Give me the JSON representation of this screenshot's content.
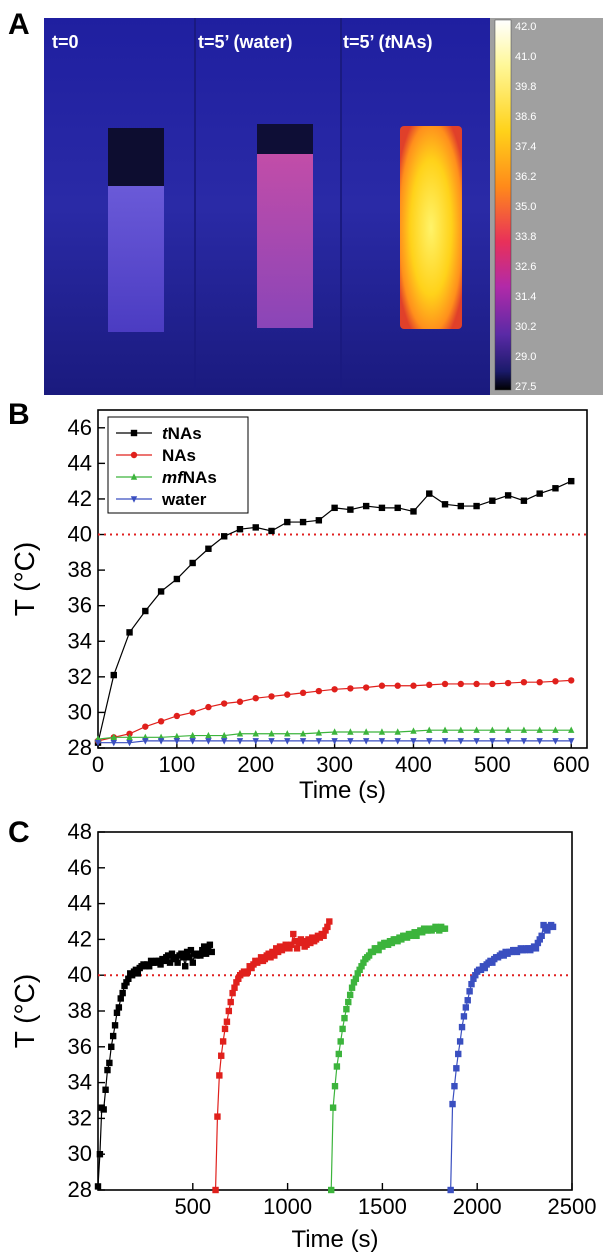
{
  "panels": {
    "a": {
      "letter": "A",
      "labels": [
        "t=0",
        "t=5’ (water)",
        "t=5’ (",
        "t",
        "NAs)"
      ],
      "colorbar_ticks": [
        "42.0",
        "41.0",
        "39.8",
        "38.6",
        "37.4",
        "36.2",
        "35.0",
        "33.8",
        "32.6",
        "31.4",
        "30.2",
        "29.0",
        "27.5"
      ]
    },
    "b": {
      "letter": "B"
    },
    "c": {
      "letter": "C"
    }
  },
  "chart_data": [
    {
      "type": "line",
      "panel": "B",
      "xlabel": "Time (s)",
      "ylabel": "T (°C)",
      "xlim": [
        0,
        620
      ],
      "ylim": [
        28,
        47
      ],
      "xticks": [
        0,
        100,
        200,
        300,
        400,
        500,
        600
      ],
      "yticks": [
        28,
        30,
        32,
        34,
        36,
        38,
        40,
        42,
        44,
        46
      ],
      "reference_line": {
        "y": 40,
        "style": "dotted",
        "color": "#e02020"
      },
      "legend": {
        "placement": "top-left"
      },
      "series": [
        {
          "name_italic": "t",
          "name_rest": "NAs",
          "marker": "square",
          "color": "#000000",
          "x": [
            0,
            20,
            40,
            60,
            80,
            100,
            120,
            140,
            160,
            180,
            200,
            220,
            240,
            260,
            280,
            300,
            320,
            340,
            360,
            380,
            400,
            420,
            440,
            460,
            480,
            500,
            520,
            540,
            560,
            580,
            600
          ],
          "y": [
            28.3,
            32.1,
            34.5,
            35.7,
            36.8,
            37.5,
            38.4,
            39.2,
            39.9,
            40.3,
            40.4,
            40.2,
            40.7,
            40.7,
            40.8,
            41.5,
            41.4,
            41.6,
            41.5,
            41.5,
            41.3,
            42.3,
            41.7,
            41.6,
            41.6,
            41.9,
            42.2,
            41.9,
            42.3,
            42.6,
            43.0
          ]
        },
        {
          "name_italic": "",
          "name_rest": "NAs",
          "marker": "circle",
          "color": "#e0201c",
          "x": [
            0,
            20,
            40,
            60,
            80,
            100,
            120,
            140,
            160,
            180,
            200,
            220,
            240,
            260,
            280,
            300,
            320,
            340,
            360,
            380,
            400,
            420,
            440,
            460,
            480,
            500,
            520,
            540,
            560,
            580,
            600
          ],
          "y": [
            28.4,
            28.6,
            28.8,
            29.2,
            29.5,
            29.8,
            30.0,
            30.3,
            30.5,
            30.6,
            30.8,
            30.9,
            31.0,
            31.1,
            31.2,
            31.3,
            31.35,
            31.4,
            31.5,
            31.5,
            31.5,
            31.55,
            31.6,
            31.6,
            31.6,
            31.6,
            31.65,
            31.7,
            31.7,
            31.75,
            31.8
          ]
        },
        {
          "name_italic": "mf",
          "name_rest": "NAs",
          "marker": "triangle-up",
          "color": "#3cb43c",
          "x": [
            0,
            20,
            40,
            60,
            80,
            100,
            120,
            140,
            160,
            180,
            200,
            220,
            240,
            260,
            280,
            300,
            320,
            340,
            360,
            380,
            400,
            420,
            440,
            460,
            480,
            500,
            520,
            540,
            560,
            580,
            600
          ],
          "y": [
            28.5,
            28.6,
            28.6,
            28.6,
            28.6,
            28.65,
            28.7,
            28.7,
            28.7,
            28.8,
            28.8,
            28.8,
            28.8,
            28.8,
            28.85,
            28.9,
            28.9,
            28.9,
            28.9,
            28.9,
            28.95,
            29.0,
            29.0,
            29.0,
            29.0,
            29.0,
            29.0,
            29.0,
            29.0,
            29.0,
            29.0
          ]
        },
        {
          "name_italic": "",
          "name_rest": "water",
          "marker": "triangle-down",
          "color": "#3a4fc0",
          "x": [
            0,
            20,
            40,
            60,
            80,
            100,
            120,
            140,
            160,
            180,
            200,
            220,
            240,
            260,
            280,
            300,
            320,
            340,
            360,
            380,
            400,
            420,
            440,
            460,
            480,
            500,
            520,
            540,
            560,
            580,
            600
          ],
          "y": [
            28.3,
            28.3,
            28.3,
            28.4,
            28.4,
            28.4,
            28.4,
            28.4,
            28.4,
            28.4,
            28.4,
            28.4,
            28.4,
            28.4,
            28.4,
            28.4,
            28.4,
            28.4,
            28.4,
            28.4,
            28.4,
            28.4,
            28.4,
            28.4,
            28.4,
            28.4,
            28.4,
            28.4,
            28.4,
            28.4,
            28.4
          ]
        }
      ]
    },
    {
      "type": "line",
      "panel": "C",
      "xlabel": "Time (s)",
      "ylabel": "T (°C)",
      "xlim": [
        0,
        2500
      ],
      "ylim": [
        28,
        48
      ],
      "xticks": [
        500,
        1000,
        1500,
        2000,
        2500
      ],
      "yticks": [
        28,
        30,
        32,
        34,
        36,
        38,
        40,
        42,
        44,
        46,
        48
      ],
      "reference_line": {
        "y": 40,
        "style": "dotted",
        "color": "#e02020"
      },
      "series": [
        {
          "color": "#000000",
          "x": [
            0,
            10,
            20,
            30,
            40,
            50,
            60,
            70,
            80,
            90,
            100,
            110,
            120,
            130,
            140,
            150,
            160,
            170,
            180,
            190,
            200,
            210,
            220,
            230,
            240,
            250,
            260,
            270,
            280,
            290,
            300,
            310,
            320,
            330,
            340,
            350,
            360,
            370,
            380,
            390,
            400,
            410,
            420,
            430,
            440,
            450,
            460,
            470,
            480,
            490,
            500,
            510,
            520,
            530,
            540,
            550,
            560,
            570,
            580,
            590,
            600
          ],
          "y": [
            28.2,
            30.0,
            32.6,
            32.5,
            33.6,
            34.7,
            35.1,
            36.0,
            36.6,
            37.2,
            37.9,
            38.2,
            38.7,
            39.0,
            39.4,
            39.6,
            39.8,
            40.1,
            40.0,
            40.2,
            40.3,
            40.1,
            40.4,
            40.5,
            40.6,
            40.5,
            40.6,
            40.5,
            40.8,
            40.7,
            40.7,
            40.8,
            40.8,
            40.6,
            40.9,
            40.8,
            41.0,
            41.1,
            40.7,
            41.2,
            41.0,
            40.9,
            40.7,
            41.1,
            41.2,
            41.0,
            40.5,
            41.3,
            41.0,
            41.4,
            40.7,
            41.2,
            41.1,
            41.2,
            41.1,
            41.4,
            41.6,
            41.2,
            41.5,
            41.7,
            41.3
          ]
        },
        {
          "color": "#e0201c",
          "x": [
            620,
            630,
            640,
            650,
            660,
            670,
            680,
            690,
            700,
            710,
            720,
            730,
            740,
            750,
            760,
            770,
            780,
            790,
            800,
            810,
            820,
            830,
            840,
            850,
            860,
            870,
            880,
            890,
            900,
            910,
            920,
            930,
            940,
            950,
            960,
            970,
            980,
            990,
            1000,
            1010,
            1020,
            1030,
            1040,
            1050,
            1060,
            1070,
            1080,
            1090,
            1100,
            1110,
            1120,
            1130,
            1140,
            1150,
            1160,
            1170,
            1180,
            1190,
            1200,
            1210,
            1220
          ],
          "y": [
            28.0,
            32.1,
            34.4,
            35.5,
            36.3,
            37.0,
            37.4,
            38.0,
            38.5,
            39.0,
            39.3,
            39.6,
            39.8,
            40.0,
            40.1,
            40.2,
            40.1,
            40.2,
            40.5,
            40.4,
            40.6,
            40.8,
            40.7,
            40.8,
            41.0,
            40.8,
            40.9,
            41.1,
            41.2,
            41.0,
            41.3,
            41.1,
            41.5,
            41.3,
            41.6,
            41.4,
            41.5,
            41.7,
            41.6,
            41.5,
            41.7,
            42.3,
            41.9,
            41.5,
            41.8,
            42.0,
            41.9,
            41.6,
            41.7,
            42.0,
            41.8,
            42.1,
            41.9,
            42.0,
            42.2,
            42.1,
            42.3,
            42.2,
            42.5,
            42.7,
            43.0
          ]
        },
        {
          "color": "#3cb43c",
          "x": [
            1230,
            1240,
            1250,
            1260,
            1270,
            1280,
            1290,
            1300,
            1310,
            1320,
            1330,
            1340,
            1350,
            1360,
            1370,
            1380,
            1390,
            1400,
            1410,
            1420,
            1430,
            1440,
            1450,
            1460,
            1470,
            1480,
            1490,
            1500,
            1510,
            1520,
            1530,
            1540,
            1550,
            1560,
            1570,
            1580,
            1590,
            1600,
            1610,
            1620,
            1630,
            1640,
            1650,
            1660,
            1670,
            1680,
            1690,
            1700,
            1710,
            1720,
            1730,
            1740,
            1750,
            1760,
            1770,
            1780,
            1790,
            1800,
            1810,
            1820,
            1830
          ],
          "y": [
            28.0,
            32.6,
            33.8,
            34.9,
            35.6,
            36.3,
            37.0,
            37.6,
            38.1,
            38.5,
            38.9,
            39.3,
            39.6,
            39.8,
            40.1,
            40.3,
            40.5,
            40.7,
            40.9,
            41.0,
            41.1,
            41.3,
            41.3,
            41.5,
            41.5,
            41.4,
            41.7,
            41.6,
            41.8,
            41.8,
            41.7,
            41.9,
            41.8,
            42.0,
            42.0,
            41.9,
            42.1,
            42.0,
            42.2,
            42.2,
            42.1,
            42.3,
            42.2,
            42.3,
            42.4,
            42.2,
            42.4,
            42.5,
            42.4,
            42.6,
            42.5,
            42.5,
            42.6,
            42.5,
            42.6,
            42.7,
            42.6,
            42.5,
            42.7,
            42.6,
            42.6
          ]
        },
        {
          "color": "#3a4fc0",
          "x": [
            1860,
            1870,
            1880,
            1890,
            1900,
            1910,
            1920,
            1930,
            1940,
            1950,
            1960,
            1970,
            1980,
            1990,
            2000,
            2010,
            2020,
            2030,
            2040,
            2050,
            2060,
            2070,
            2080,
            2090,
            2100,
            2110,
            2120,
            2130,
            2140,
            2150,
            2160,
            2170,
            2180,
            2190,
            2200,
            2210,
            2220,
            2230,
            2240,
            2250,
            2260,
            2270,
            2280,
            2290,
            2300,
            2310,
            2320,
            2330,
            2340,
            2350,
            2360,
            2370,
            2380,
            2390,
            2400
          ],
          "y": [
            28.0,
            32.8,
            33.8,
            34.8,
            35.6,
            36.3,
            37.1,
            37.7,
            38.2,
            38.6,
            39.1,
            39.5,
            39.8,
            40.0,
            40.2,
            40.3,
            40.3,
            40.5,
            40.4,
            40.6,
            40.7,
            40.8,
            40.7,
            40.9,
            41.0,
            41.0,
            41.1,
            41.2,
            41.1,
            41.3,
            41.2,
            41.3,
            41.3,
            41.4,
            41.4,
            41.3,
            41.4,
            41.5,
            41.4,
            41.4,
            41.5,
            41.5,
            41.4,
            41.5,
            41.6,
            41.5,
            41.8,
            42.0,
            42.2,
            42.8,
            42.6,
            42.5,
            42.7,
            42.8,
            42.7
          ]
        }
      ]
    }
  ]
}
